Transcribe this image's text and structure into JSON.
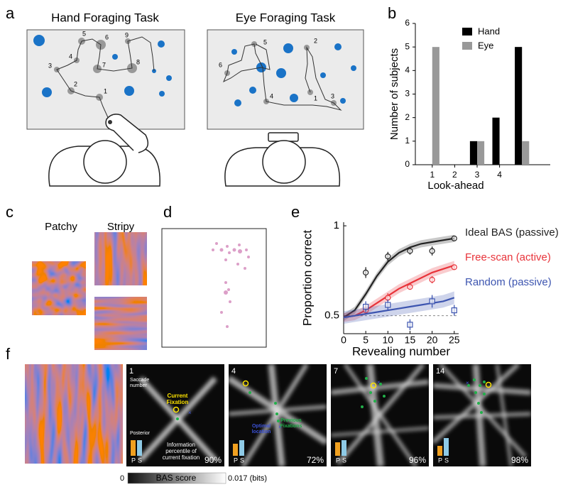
{
  "figure": {
    "panel_labels": [
      "a",
      "b",
      "c",
      "d",
      "e",
      "f"
    ],
    "hand_task": {
      "title": "Hand Foraging Task",
      "order": [
        "1",
        "2",
        "3",
        "4",
        "5",
        "6",
        "7",
        "8",
        "9"
      ]
    },
    "eye_task": {
      "title": "Eye Foraging Task",
      "order": [
        "1",
        "2",
        "3",
        "4",
        "5",
        "6"
      ]
    },
    "textures": {
      "patchy": "Patchy",
      "stripy": "Stripy"
    },
    "frames": [
      {
        "saccade": "1",
        "percentile": "90%"
      },
      {
        "saccade": "4",
        "percentile": "72%"
      },
      {
        "saccade": "7",
        "percentile": "96%"
      },
      {
        "saccade": "14",
        "percentile": "98%"
      }
    ],
    "annotations": {
      "saccade_number": [
        "Saccade",
        "number"
      ],
      "current_fixation": [
        "Current",
        "Fixation"
      ],
      "previous_fixations": [
        "Previous",
        "Fixations"
      ],
      "optimal_location": [
        "Optimal",
        "location"
      ],
      "posterior": "Posterior",
      "posterior_axis": [
        "P",
        "S"
      ],
      "information": [
        "Information",
        "percentile of",
        "current fixation"
      ]
    },
    "colorbar": {
      "title": "BAS score",
      "min": "0",
      "max": "0.017 (bits)"
    }
  },
  "chart_data": [
    {
      "type": "bar",
      "xlabel": "Look-ahead",
      "ylabel": "Number of subjects",
      "categories": [
        "1",
        "2",
        "3",
        "4",
        null
      ],
      "series": [
        {
          "name": "Hand",
          "color": "#000000",
          "values": [
            0,
            0,
            1,
            2,
            5
          ]
        },
        {
          "name": "Eye",
          "color": "#999999",
          "values": [
            5,
            0,
            1,
            0,
            1
          ]
        }
      ],
      "ylim": [
        0,
        6
      ],
      "yticks": [
        0,
        1,
        2,
        3,
        4,
        5,
        6
      ],
      "legend": "upper right"
    },
    {
      "type": "line",
      "xlabel": "Revealing number",
      "ylabel": "Proportion correct",
      "x": [
        5,
        10,
        15,
        20,
        25
      ],
      "xlim": [
        0,
        26
      ],
      "xticks": [
        0,
        5,
        10,
        15,
        20,
        25
      ],
      "ylim": [
        0.4,
        1.02
      ],
      "yticks": [
        0.5,
        1
      ],
      "chance": 0.5,
      "curve_x": [
        0,
        2.5,
        5,
        7.5,
        10,
        12.5,
        15,
        17.5,
        20,
        22.5,
        25
      ],
      "series": [
        {
          "name": "Ideal BAS (passive)",
          "color": "#222222",
          "marker": "circle",
          "values": [
            0.74,
            0.83,
            0.86,
            0.86,
            0.93
          ],
          "errors": [
            0.03,
            0.025,
            0.02,
            0.025,
            0.015
          ],
          "curve": [
            0.49,
            0.53,
            0.62,
            0.72,
            0.8,
            0.85,
            0.88,
            0.9,
            0.91,
            0.92,
            0.93
          ],
          "band": 0.02
        },
        {
          "name": "Free-scan (active)",
          "color": "#e8333a",
          "marker": "circle",
          "values": [
            0.53,
            0.6,
            0.66,
            0.7,
            0.77
          ],
          "errors": [
            0.025,
            0.025,
            0.015,
            0.02,
            0.015
          ],
          "curve": [
            0.49,
            0.5,
            0.53,
            0.57,
            0.61,
            0.65,
            0.68,
            0.71,
            0.74,
            0.76,
            0.78
          ],
          "band": 0.025
        },
        {
          "name": "Random (passive)",
          "color": "#3d55b0",
          "marker": "square",
          "values": [
            0.55,
            0.56,
            0.45,
            0.58,
            0.53
          ],
          "errors": [
            0.03,
            0.03,
            0.03,
            0.035,
            0.03
          ],
          "curve": [
            0.49,
            0.5,
            0.51,
            0.52,
            0.53,
            0.54,
            0.55,
            0.56,
            0.57,
            0.58,
            0.6
          ],
          "band": 0.035
        }
      ]
    }
  ]
}
